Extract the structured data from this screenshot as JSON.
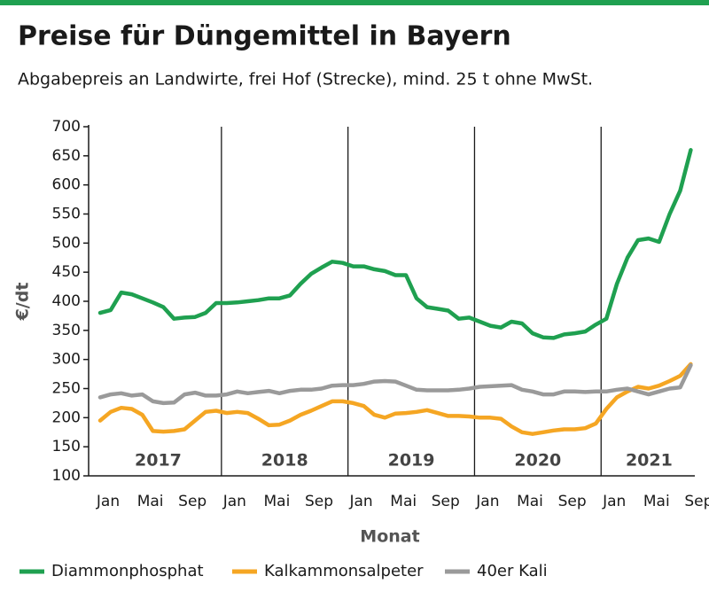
{
  "chart_data": {
    "type": "line",
    "title": "Preise für Düngemittel in Bayern",
    "subtitle": "Abgabepreis an Landwirte, frei Hof (Strecke), mind. 25 t ohne MwSt.",
    "y_label": "€/dt",
    "x_label": "Monat",
    "year_labels": [
      "2017",
      "2018",
      "2019",
      "2020",
      "2021"
    ],
    "categories": [
      "Jan",
      null,
      null,
      null,
      "Mai",
      null,
      null,
      null,
      "Sep",
      null,
      null,
      null,
      "Jan",
      null,
      null,
      null,
      "Mai",
      null,
      null,
      null,
      "Sep",
      null,
      null,
      null,
      "Jan",
      null,
      null,
      null,
      "Mai",
      null,
      null,
      null,
      "Sep",
      null,
      null,
      null,
      "Jan",
      null,
      null,
      null,
      "Mai",
      null,
      null,
      null,
      "Sep",
      null,
      null,
      null,
      "Jan",
      null,
      null,
      null,
      "Mai",
      null,
      null,
      null,
      "Sep"
    ],
    "ylim": [
      100,
      700
    ],
    "yticks": [
      100,
      150,
      200,
      250,
      300,
      350,
      400,
      450,
      500,
      550,
      600,
      650,
      700
    ],
    "series": [
      {
        "name": "Diammonphosphat",
        "color": "#1fa050",
        "values": [
          380,
          385,
          415,
          412,
          405,
          398,
          390,
          370,
          372,
          373,
          380,
          397,
          397,
          398,
          400,
          402,
          405,
          405,
          410,
          430,
          447,
          458,
          468,
          466,
          460,
          460,
          455,
          452,
          445,
          445,
          405,
          390,
          387,
          384,
          370,
          372,
          365,
          358,
          355,
          365,
          362,
          345,
          338,
          337,
          343,
          345,
          348,
          360,
          370,
          430,
          475,
          505,
          508,
          502,
          550,
          590,
          660
        ]
      },
      {
        "name": "Kalkammonsalpeter",
        "color": "#f5a623",
        "values": [
          195,
          210,
          217,
          215,
          205,
          177,
          176,
          177,
          180,
          195,
          210,
          212,
          208,
          210,
          208,
          198,
          187,
          188,
          195,
          205,
          212,
          220,
          228,
          228,
          225,
          220,
          205,
          200,
          207,
          208,
          210,
          213,
          208,
          203,
          203,
          202,
          200,
          200,
          198,
          185,
          175,
          172,
          175,
          178,
          180,
          180,
          182,
          190,
          215,
          235,
          245,
          253,
          250,
          255,
          263,
          272,
          292
        ]
      },
      {
        "name": "40er Kali",
        "color": "#9a9a9a",
        "values": [
          235,
          240,
          242,
          238,
          240,
          228,
          225,
          226,
          240,
          243,
          238,
          238,
          240,
          245,
          242,
          244,
          246,
          242,
          246,
          248,
          248,
          250,
          255,
          256,
          256,
          258,
          262,
          263,
          262,
          255,
          248,
          247,
          247,
          247,
          248,
          250,
          253,
          254,
          255,
          256,
          248,
          245,
          240,
          240,
          245,
          245,
          244,
          245,
          245,
          248,
          250,
          245,
          240,
          245,
          250,
          252,
          290
        ]
      }
    ]
  }
}
